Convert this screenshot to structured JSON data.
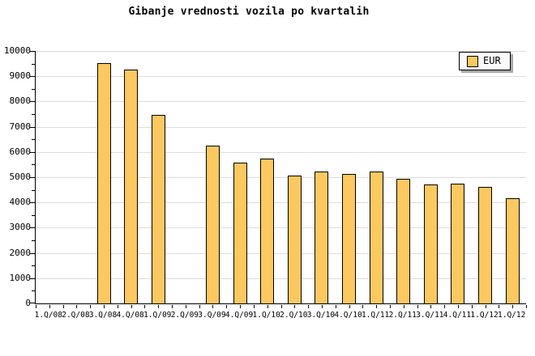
{
  "chart_data": {
    "type": "bar",
    "title": "Gibanje vrednosti vozila po kvartalih",
    "xlabel": "",
    "ylabel": "",
    "categories": [
      "1.Q/08",
      "2.Q/08",
      "3.Q/08",
      "4.Q/08",
      "1.Q/09",
      "2.Q/09",
      "3.Q/09",
      "4.Q/09",
      "1.Q/10",
      "2.Q/10",
      "3.Q/10",
      "4.Q/10",
      "1.Q/11",
      "2.Q/11",
      "3.Q/11",
      "4.Q/11",
      "1.Q/12",
      "1.Q/12"
    ],
    "series": [
      {
        "name": "EUR",
        "values": [
          null,
          null,
          9500,
          9230,
          7440,
          null,
          6220,
          5550,
          5690,
          5030,
          5190,
          5110,
          5190,
          4890,
          4680,
          4700,
          4570,
          4130
        ]
      }
    ],
    "ylim": [
      0,
      10000
    ],
    "ytick_interval": 1000,
    "ytick_minor_interval": 500,
    "y_tick_labels": [
      "0",
      "1000",
      "2000",
      "3000",
      "4000",
      "5000",
      "6000",
      "7000",
      "8000",
      "9000",
      "10000"
    ],
    "grid": "horizontal-major",
    "legend": {
      "position": "top-right",
      "entries": [
        "EUR"
      ]
    },
    "colors": {
      "bar_fill": "#fcc85f",
      "bar_border": "#000000",
      "grid": "#dcdcdc",
      "axis": "#000000",
      "background": "#ffffff",
      "legend_bg": "#fafafa",
      "legend_shadow": "#a8a8a8",
      "text": "#000000"
    }
  }
}
